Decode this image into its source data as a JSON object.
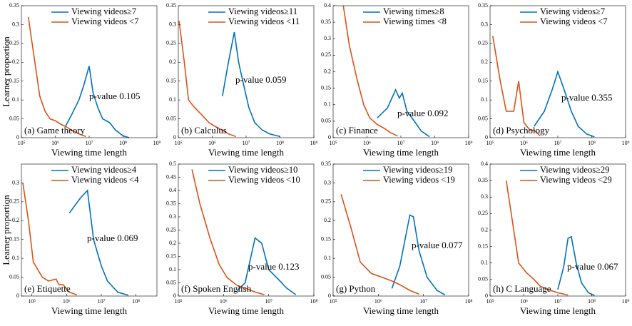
{
  "chart_data": [
    {
      "type": "line",
      "panel_label": "(a) Game theory",
      "xlabel": "Viewing time length",
      "ylabel": "Learner proportion",
      "annotation": "p-value 0.105",
      "log_x": true,
      "xlim": [
        100000,
        1000000000
      ],
      "xticks": [
        {
          "value": 100000,
          "label": "10⁵"
        },
        {
          "value": 1000000,
          "label": "10⁶"
        },
        {
          "value": 10000000,
          "label": "10⁷"
        },
        {
          "value": 100000000,
          "label": "10⁸"
        },
        {
          "value": 1000000000,
          "label": "10⁹"
        }
      ],
      "ylim": [
        0,
        0.35
      ],
      "yticks": [
        0,
        0.05,
        0.1,
        0.15,
        0.2,
        0.25,
        0.3,
        0.35
      ],
      "series": [
        {
          "name": "Viewing videos≥7",
          "color": "#0072bd",
          "x": [
            2000000,
            3000000,
            5000000,
            7000000,
            10000000,
            13000000,
            18000000,
            25000000,
            40000000,
            60000000,
            100000000,
            150000000
          ],
          "values": [
            0.03,
            0.06,
            0.1,
            0.14,
            0.19,
            0.12,
            0.08,
            0.05,
            0.04,
            0.02,
            0.005,
            0
          ]
        },
        {
          "name": "Viewing videos <7",
          "color": "#d95319",
          "x": [
            160000,
            250000,
            350000,
            500000,
            700000,
            1000000,
            1500000,
            2000000,
            3000000,
            5000000,
            8000000
          ],
          "values": [
            0.32,
            0.2,
            0.11,
            0.07,
            0.05,
            0.045,
            0.035,
            0.03,
            0.02,
            0.01,
            0.003
          ]
        }
      ]
    },
    {
      "type": "line",
      "panel_label": "(b) Calculus",
      "xlabel": "Viewing time length",
      "annotation": "p-value 0.059",
      "log_x": true,
      "xlim": [
        100000,
        1000000000
      ],
      "xticks": [
        {
          "value": 100000,
          "label": "10⁵"
        },
        {
          "value": 1000000,
          "label": "10⁶"
        },
        {
          "value": 10000000,
          "label": "10⁷"
        },
        {
          "value": 100000000,
          "label": "10⁸"
        },
        {
          "value": 1000000000,
          "label": "10⁹"
        }
      ],
      "ylim": [
        0,
        0.35
      ],
      "yticks": [
        0,
        0.05,
        0.1,
        0.15,
        0.2,
        0.25,
        0.3,
        0.35
      ],
      "series": [
        {
          "name": "Viewing videos≥11",
          "color": "#0072bd",
          "x": [
            2000000,
            3000000,
            4500000,
            6000000,
            8000000,
            12000000,
            18000000,
            30000000,
            50000000,
            100000000
          ],
          "values": [
            0.11,
            0.2,
            0.28,
            0.2,
            0.15,
            0.08,
            0.04,
            0.02,
            0.01,
            0.003
          ]
        },
        {
          "name": "Viewing videos <11",
          "color": "#d95319",
          "x": [
            105000,
            150000,
            200000,
            300000,
            500000,
            800000,
            1200000,
            2000000,
            3000000,
            5000000
          ],
          "values": [
            0.31,
            0.2,
            0.1,
            0.08,
            0.06,
            0.04,
            0.03,
            0.02,
            0.01,
            0.003
          ]
        }
      ]
    },
    {
      "type": "line",
      "panel_label": "(c) Finance",
      "xlabel": "Viewing time length",
      "annotation": "p-value 0.092",
      "log_x": true,
      "xlim": [
        100000,
        1000000000
      ],
      "xticks": [
        {
          "value": 100000,
          "label": "10⁵"
        },
        {
          "value": 1000000,
          "label": "10⁶"
        },
        {
          "value": 10000000,
          "label": "10⁷"
        },
        {
          "value": 100000000,
          "label": "10⁸"
        },
        {
          "value": 1000000000,
          "label": "10⁹"
        }
      ],
      "ylim": [
        0,
        0.4
      ],
      "yticks": [
        0,
        0.05,
        0.1,
        0.15,
        0.2,
        0.25,
        0.3,
        0.35,
        0.4
      ],
      "series": [
        {
          "name": "Viewing times≥8",
          "color": "#0072bd",
          "x": [
            2000000,
            4000000,
            7000000,
            9000000,
            11000000,
            15000000,
            25000000,
            40000000,
            70000000
          ],
          "values": [
            0.06,
            0.09,
            0.145,
            0.12,
            0.135,
            0.08,
            0.05,
            0.02,
            0.003
          ]
        },
        {
          "name": "Viewing times <8",
          "color": "#d95319",
          "x": [
            200000,
            300000,
            500000,
            800000,
            1200000,
            2000000,
            3000000,
            5000000,
            8000000
          ],
          "values": [
            0.4,
            0.28,
            0.18,
            0.1,
            0.06,
            0.04,
            0.03,
            0.015,
            0.005
          ]
        }
      ]
    },
    {
      "type": "line",
      "panel_label": "(d) Psychology",
      "xlabel": "Viewing time length",
      "annotation": "p-value 0.355",
      "log_x": true,
      "xlim": [
        100000,
        1000000000
      ],
      "xticks": [
        {
          "value": 100000,
          "label": "10⁵"
        },
        {
          "value": 1000000,
          "label": "10⁶"
        },
        {
          "value": 10000000,
          "label": "10⁷"
        },
        {
          "value": 100000000,
          "label": "10⁸"
        },
        {
          "value": 1000000000,
          "label": "10⁹"
        }
      ],
      "ylim": [
        0,
        0.35
      ],
      "yticks": [
        0,
        0.05,
        0.1,
        0.15,
        0.2,
        0.25,
        0.3,
        0.35
      ],
      "series": [
        {
          "name": "Viewing  videos≥7",
          "color": "#0072bd",
          "x": [
            2000000,
            4000000,
            7000000,
            10000000,
            15000000,
            25000000,
            40000000,
            70000000,
            120000000
          ],
          "values": [
            0.03,
            0.07,
            0.13,
            0.175,
            0.13,
            0.07,
            0.03,
            0.01,
            0.002
          ]
        },
        {
          "name": "Viewing videos <7",
          "color": "#d95319",
          "x": [
            120000,
            200000,
            300000,
            500000,
            700000,
            1000000,
            1500000,
            2000000,
            3000000
          ],
          "values": [
            0.27,
            0.15,
            0.07,
            0.07,
            0.15,
            0.04,
            0.02,
            0.02,
            0.005
          ]
        }
      ]
    },
    {
      "type": "line",
      "panel_label": "(e) Etiquette",
      "xlabel": "Viewing time length",
      "ylabel": "Learner proportion",
      "annotation": "p-value 0.069",
      "log_x": true,
      "xlim": [
        50000,
        400000000
      ],
      "xticks": [
        {
          "value": 100000,
          "label": "10⁵"
        },
        {
          "value": 1000000,
          "label": "10⁶"
        },
        {
          "value": 10000000,
          "label": "10⁷"
        },
        {
          "value": 100000000,
          "label": "10⁸"
        }
      ],
      "ylim": [
        0,
        0.35
      ],
      "yticks": [
        0,
        0.05,
        0.1,
        0.15,
        0.2,
        0.25,
        0.3
      ],
      "series": [
        {
          "name": "Viewing videos≥4",
          "color": "#0072bd",
          "x": [
            1200000,
            2500000,
            4000000,
            6000000,
            10000000,
            15000000,
            30000000,
            60000000
          ],
          "values": [
            0.22,
            0.26,
            0.28,
            0.15,
            0.08,
            0.04,
            0.01,
            0.002
          ]
        },
        {
          "name": "Viewing videos <4",
          "color": "#d95319",
          "x": [
            55000,
            80000,
            110000,
            200000,
            300000,
            500000,
            600000,
            800000,
            1200000,
            2000000
          ],
          "values": [
            0.3,
            0.2,
            0.09,
            0.05,
            0.04,
            0.045,
            0.03,
            0.03,
            0.01,
            0.003
          ]
        }
      ]
    },
    {
      "type": "line",
      "panel_label": "(f) Spoken English",
      "xlabel": "Viewing time length",
      "annotation": "p-value 0.123",
      "log_x": true,
      "xlim": [
        100000,
        100000000
      ],
      "xticks": [
        {
          "value": 100000,
          "label": "10⁵"
        },
        {
          "value": 1000000,
          "label": "10⁶"
        },
        {
          "value": 10000000,
          "label": "10⁷"
        },
        {
          "value": 100000000,
          "label": "10⁸"
        }
      ],
      "ylim": [
        0,
        0.5
      ],
      "yticks": [
        0,
        0.05,
        0.1,
        0.15,
        0.2,
        0.25,
        0.3,
        0.35,
        0.4,
        0.45,
        0.5
      ],
      "series": [
        {
          "name": "Viewing videos≥10",
          "color": "#0072bd",
          "x": [
            2000000,
            3000000,
            5000000,
            7000000,
            10000000,
            15000000,
            25000000,
            40000000
          ],
          "values": [
            0.02,
            0.05,
            0.22,
            0.2,
            0.1,
            0.07,
            0.03,
            0.005
          ]
        },
        {
          "name": "Viewing videos <10",
          "color": "#d95319",
          "x": [
            200000,
            300000,
            500000,
            800000,
            1200000,
            2000000,
            3000000,
            5000000,
            8000000
          ],
          "values": [
            0.48,
            0.35,
            0.22,
            0.12,
            0.07,
            0.04,
            0.03,
            0.015,
            0.005
          ]
        }
      ]
    },
    {
      "type": "line",
      "panel_label": "(g) Python",
      "xlabel": "Viewing time length",
      "annotation": "p-value 0.077",
      "log_x": true,
      "xlim": [
        100000,
        100000000
      ],
      "xticks": [
        {
          "value": 100000,
          "label": "10⁵"
        },
        {
          "value": 1000000,
          "label": "10⁶"
        },
        {
          "value": 10000000,
          "label": "10⁷"
        },
        {
          "value": 100000000,
          "label": "10⁸"
        }
      ],
      "ylim": [
        0,
        0.35
      ],
      "yticks": [
        0,
        0.05,
        0.1,
        0.15,
        0.2,
        0.25,
        0.3,
        0.35
      ],
      "series": [
        {
          "name": "Viewing videos≥19",
          "color": "#0072bd",
          "x": [
            2000000,
            3000000,
            5000000,
            6000000,
            8000000,
            12000000,
            20000000,
            30000000
          ],
          "values": [
            0.02,
            0.08,
            0.215,
            0.21,
            0.12,
            0.05,
            0.015,
            0.003
          ]
        },
        {
          "name": "Viewing videos <19",
          "color": "#d95319",
          "x": [
            150000,
            250000,
            400000,
            700000,
            1200000,
            2000000,
            3000000,
            5000000,
            8000000
          ],
          "values": [
            0.27,
            0.18,
            0.09,
            0.06,
            0.05,
            0.04,
            0.03,
            0.015,
            0.005
          ]
        }
      ]
    },
    {
      "type": "line",
      "panel_label": "(h) C Language",
      "xlabel": "Viewing time length",
      "annotation": "p-value 0.067",
      "log_x": true,
      "xlim": [
        100000,
        1000000000
      ],
      "xticks": [
        {
          "value": 100000,
          "label": "10⁵"
        },
        {
          "value": 1000000,
          "label": "10⁶"
        },
        {
          "value": 10000000,
          "label": "10⁷"
        },
        {
          "value": 100000000,
          "label": "10⁸"
        },
        {
          "value": 1000000000,
          "label": "10⁹"
        }
      ],
      "ylim": [
        0,
        0.4
      ],
      "yticks": [
        0,
        0.05,
        0.1,
        0.15,
        0.2,
        0.25,
        0.3,
        0.35,
        0.4
      ],
      "series": [
        {
          "name": "Viewing videos≥29",
          "color": "#0072bd",
          "x": [
            10000000,
            15000000,
            20000000,
            25000000,
            35000000,
            50000000,
            80000000,
            120000000
          ],
          "values": [
            0.02,
            0.09,
            0.175,
            0.18,
            0.1,
            0.04,
            0.01,
            0.002
          ]
        },
        {
          "name": "Viewing videos <29",
          "color": "#d95319",
          "x": [
            300000,
            500000,
            700000,
            1200000,
            2000000,
            3000000,
            5000000,
            10000000,
            20000000
          ],
          "values": [
            0.35,
            0.2,
            0.1,
            0.07,
            0.05,
            0.03,
            0.02,
            0.01,
            0.003
          ]
        }
      ]
    }
  ]
}
